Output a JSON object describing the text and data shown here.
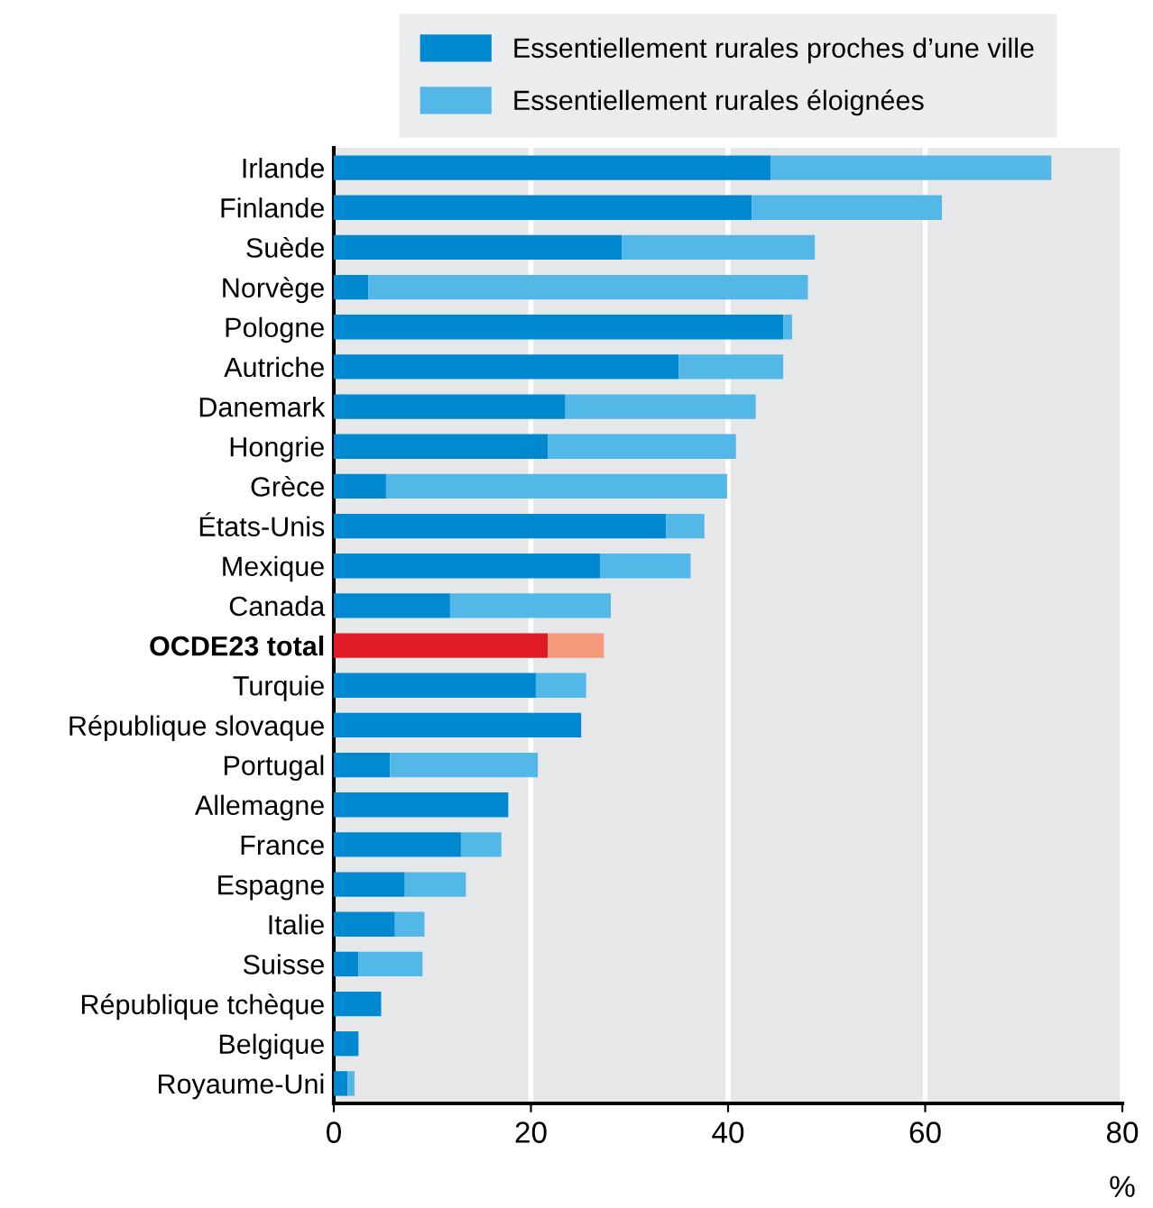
{
  "chart_data": {
    "type": "bar",
    "orientation": "horizontal",
    "stacked": true,
    "categories": [
      "Irlande",
      "Finlande",
      "Suède",
      "Norvège",
      "Pologne",
      "Autriche",
      "Danemark",
      "Hongrie",
      "Grèce",
      "États-Unis",
      "Mexique",
      "Canada",
      "OCDE23 total",
      "Turquie",
      "République slovaque",
      "Portugal",
      "Allemagne",
      "France",
      "Espagne",
      "Italie",
      "Suisse",
      "République tchèque",
      "Belgique",
      "Royaume-Uni"
    ],
    "series": [
      {
        "name": "Essentiellement rurales proches d’une ville",
        "color": "#0089d0",
        "colors": [
          "#0089d0",
          "#0089d0",
          "#0089d0",
          "#0089d0",
          "#0089d0",
          "#0089d0",
          "#0089d0",
          "#0089d0",
          "#0089d0",
          "#0089d0",
          "#0089d0",
          "#0089d0",
          "#e01b24",
          "#0089d0",
          "#0089d0",
          "#0089d0",
          "#0089d0",
          "#0089d0",
          "#0089d0",
          "#0089d0",
          "#0089d0",
          "#0089d0",
          "#0089d0",
          "#0089d0"
        ],
        "values": [
          44.3,
          42.4,
          29.2,
          3.5,
          45.6,
          35.0,
          23.5,
          21.7,
          5.3,
          33.7,
          27.0,
          11.8,
          21.7,
          20.5,
          25.1,
          5.7,
          17.7,
          12.9,
          7.2,
          6.2,
          2.5,
          4.8,
          2.5,
          1.4
        ]
      },
      {
        "name": "Essentiellement rurales éloignées",
        "color": "#53b7e8",
        "colors": [
          "#53b7e8",
          "#53b7e8",
          "#53b7e8",
          "#53b7e8",
          "#53b7e8",
          "#53b7e8",
          "#53b7e8",
          "#53b7e8",
          "#53b7e8",
          "#53b7e8",
          "#53b7e8",
          "#53b7e8",
          "#f4997b",
          "#53b7e8",
          "#53b7e8",
          "#53b7e8",
          "#53b7e8",
          "#53b7e8",
          "#53b7e8",
          "#53b7e8",
          "#53b7e8",
          "#53b7e8",
          "#53b7e8",
          "#53b7e8"
        ],
        "values": [
          28.5,
          19.3,
          19.6,
          44.6,
          0.9,
          10.6,
          19.3,
          19.1,
          34.6,
          3.9,
          9.2,
          16.3,
          5.7,
          5.1,
          0,
          15.0,
          0,
          4.1,
          6.2,
          3.0,
          6.5,
          0,
          0,
          0.7
        ]
      }
    ],
    "xlim": [
      0,
      80
    ],
    "xticks": [
      0,
      20,
      40,
      60,
      80
    ],
    "xlabel": "%",
    "grid": "x",
    "legend": "top"
  }
}
